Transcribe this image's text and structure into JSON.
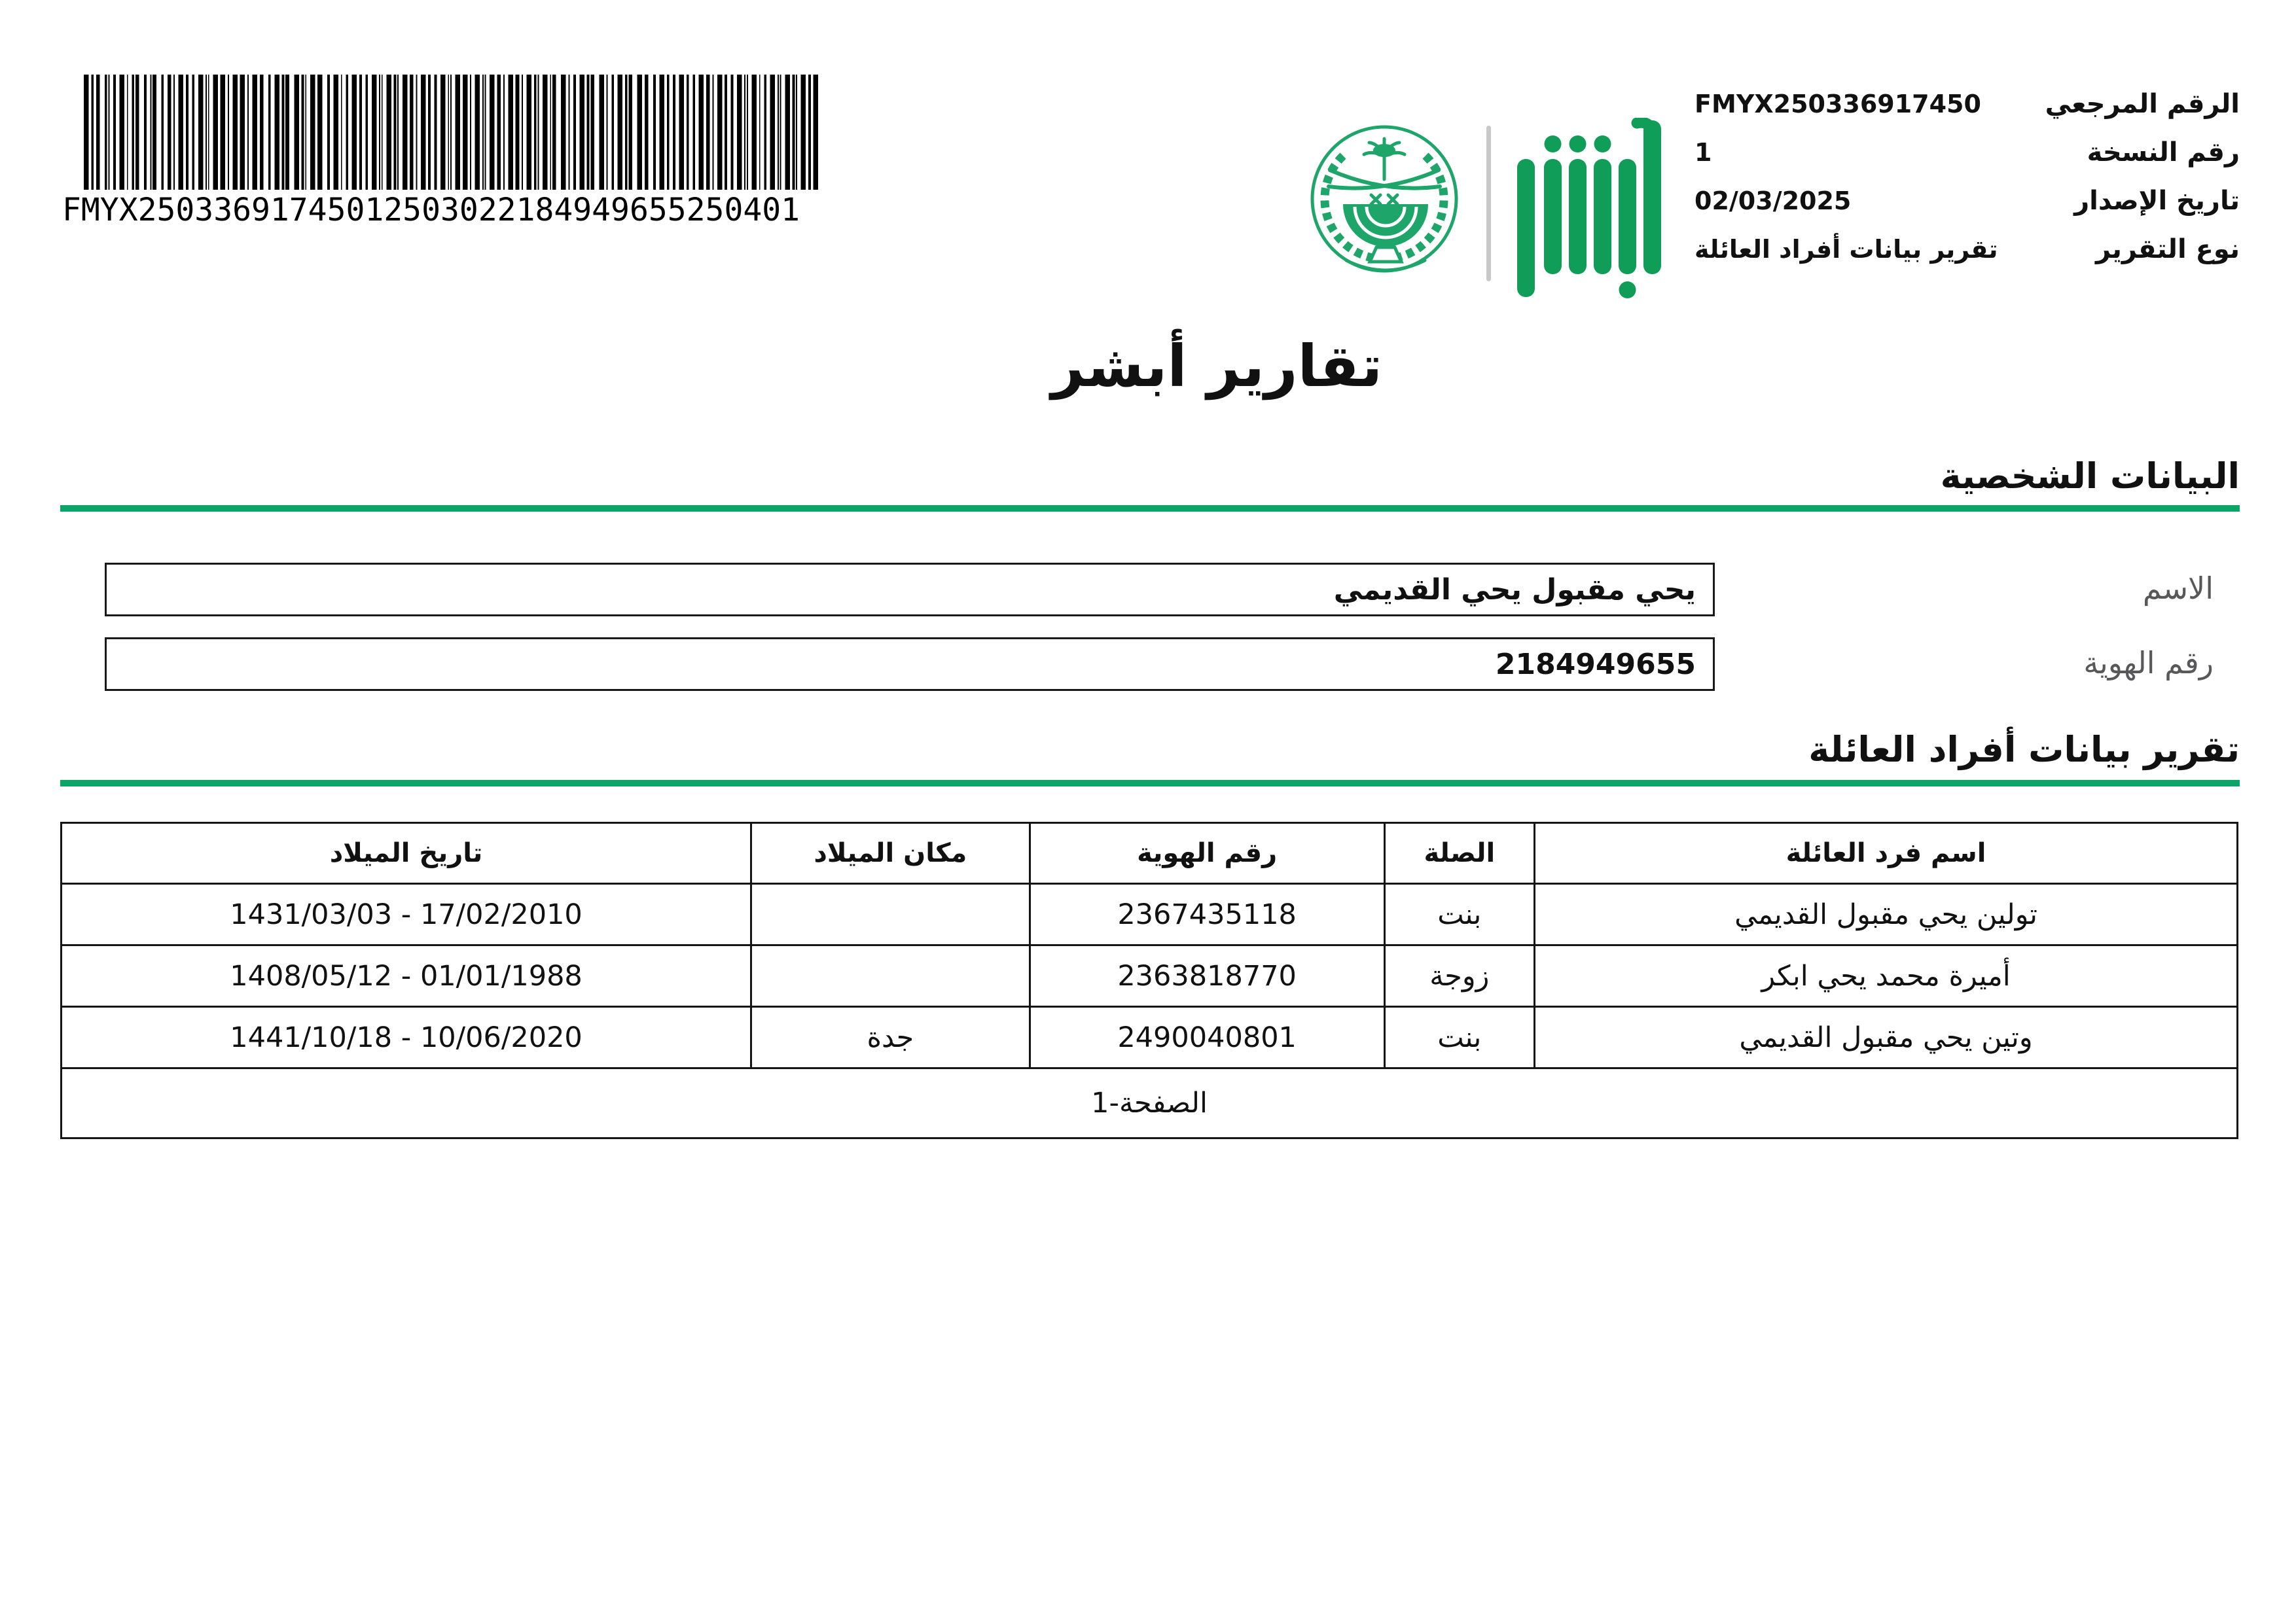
{
  "barcode": {
    "text": "FMYX25033691745012503022184949655250401"
  },
  "logos": {
    "ministry_emblem": "saudi-ministry-of-interior-emblem",
    "absher_logo": "absher-logo"
  },
  "meta": {
    "rows": [
      {
        "label": "الرقم المرجعي",
        "value": "FMYX250336917450"
      },
      {
        "label": "رقم النسخة",
        "value": "1"
      },
      {
        "label": "تاريخ الإصدار",
        "value": "02/03/2025"
      },
      {
        "label": "نوع التقرير",
        "value": "تقرير بيانات أفراد العائلة"
      }
    ]
  },
  "title": "تقارير أبشر",
  "personal_section": {
    "heading": "البيانات الشخصية",
    "fields": [
      {
        "label": "الاسم",
        "value": "يحي مقبول يحي القديمي"
      },
      {
        "label": "رقم الهوية",
        "value": "2184949655"
      }
    ]
  },
  "family_section": {
    "heading": "تقرير بيانات أفراد العائلة",
    "table": {
      "headers": [
        "اسم فرد العائلة",
        "الصلة",
        "رقم الهوية",
        "مكان الميلاد",
        "تاريخ الميلاد"
      ],
      "rows": [
        [
          "تولين يحي مقبول القديمي",
          "بنت",
          "2367435118",
          "",
          "1431/03/03 - 17/02/2010"
        ],
        [
          "أميرة محمد يحي ابكر",
          "زوجة",
          "2363818770",
          "",
          "1408/05/12 - 01/01/1988"
        ],
        [
          "وتين يحي مقبول القديمي",
          "بنت",
          "2490040801",
          "جدة",
          "1441/10/18 - 10/06/2020"
        ]
      ],
      "footer": "الصفحة-1"
    }
  },
  "colors": {
    "rule_green": "#0ca568",
    "logo_green": "#0f9d58",
    "emblem_green": "#1ea56a",
    "label_gray": "#58585a",
    "divider_gray": "#c9c9c9"
  }
}
